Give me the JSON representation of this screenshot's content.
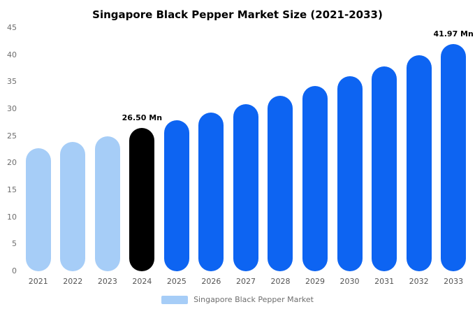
{
  "chart_data": {
    "type": "bar",
    "title": "Singapore Black Pepper Market Size (2021-2033)",
    "unit": "Mn",
    "xlabel": "",
    "ylabel": "",
    "ylim": [
      0,
      45
    ],
    "yticks": [
      0,
      5,
      10,
      15,
      20,
      25,
      30,
      35,
      40,
      45
    ],
    "grid": false,
    "legend_position": "bottom",
    "categories": [
      "2021",
      "2022",
      "2023",
      "2024",
      "2025",
      "2026",
      "2027",
      "2028",
      "2029",
      "2030",
      "2031",
      "2032",
      "2033"
    ],
    "values": [
      22.7,
      23.9,
      25.0,
      26.5,
      27.89,
      29.36,
      30.9,
      32.52,
      34.23,
      36.03,
      37.92,
      39.91,
      41.97
    ],
    "bar_colors": [
      "#a6cdf7",
      "#a6cdf7",
      "#a6cdf7",
      "#000000",
      "#0d64f2",
      "#0d64f2",
      "#0d64f2",
      "#0d64f2",
      "#0d64f2",
      "#0d64f2",
      "#0d64f2",
      "#0d64f2",
      "#0d64f2"
    ],
    "annotations": [
      {
        "index": 3,
        "text": "26.50 Mn"
      },
      {
        "index": 12,
        "text": "41.97 Mn"
      }
    ],
    "colors": {
      "historical": "#a6cdf7",
      "highlight": "#000000",
      "forecast": "#0d64f2"
    },
    "legend": [
      {
        "label": "Singapore Black Pepper Market",
        "color": "#a6cdf7"
      }
    ]
  }
}
